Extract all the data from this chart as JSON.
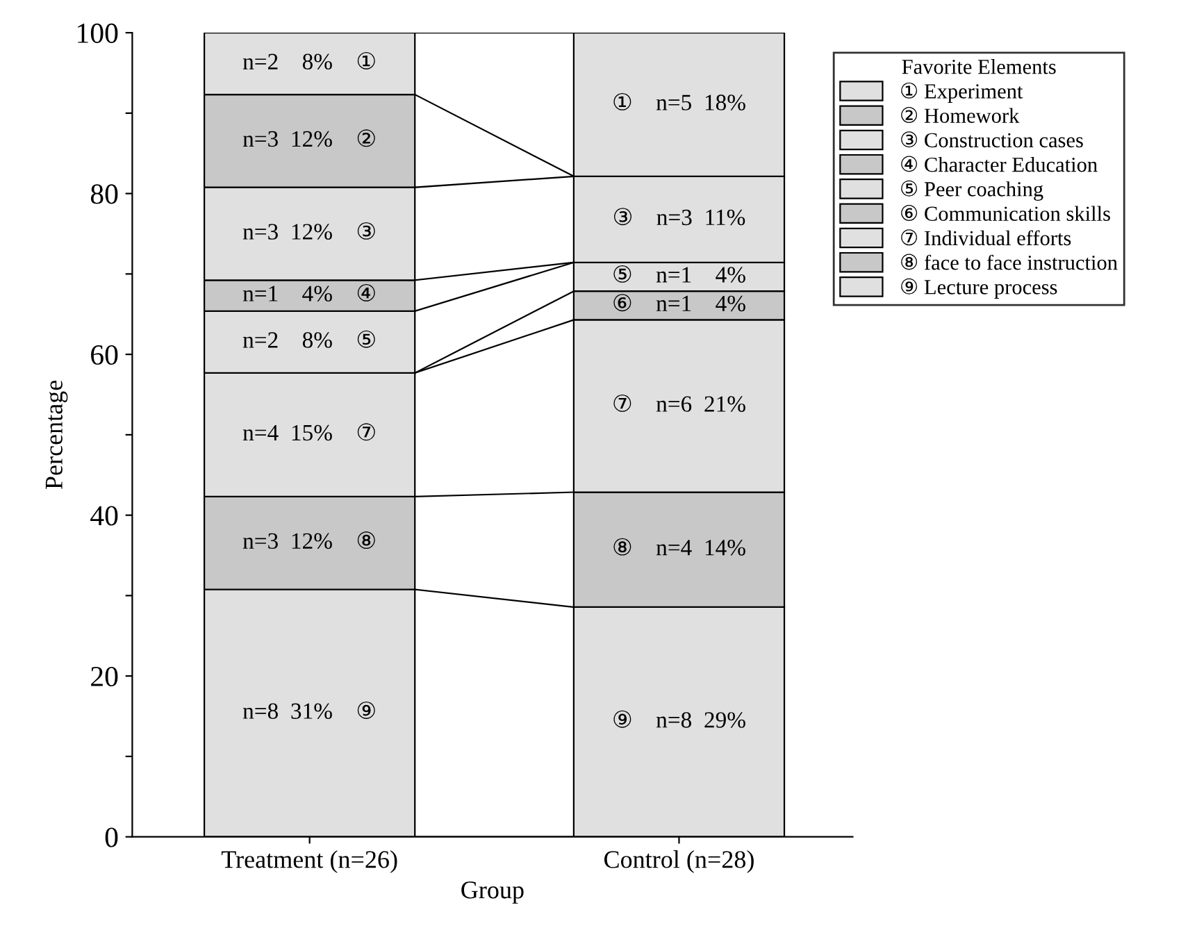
{
  "chart_data": {
    "type": "bar",
    "stacked": true,
    "xlabel": "Group",
    "ylabel": "Percentage",
    "legend_title": "Favorite Elements",
    "legend": "top right",
    "categories": [
      "Treatment (n=26)",
      "Control (n=28)"
    ],
    "ylim": [
      0,
      100
    ],
    "yticks": [
      0,
      {
        "value": 10,
        "label": null
      },
      20,
      {
        "value": 30,
        "label": null
      },
      40,
      {
        "value": 50,
        "label": null
      },
      60,
      {
        "value": 70,
        "label": null
      },
      80,
      {
        "value": 90,
        "label": null
      },
      100
    ],
    "series": [
      {
        "name": "⑨ Lecture process",
        "color": "#e0e0e0",
        "values": [
          30.77,
          28.57
        ],
        "value_labels": [
          "n=8  31%    ⑨",
          "⑨    n=8  29%"
        ]
      },
      {
        "name": "⑧ face to face instruction",
        "color": "#c8c8c8",
        "values": [
          11.54,
          14.29
        ],
        "value_labels": [
          "n=3  12%    ⑧",
          "⑧    n=4  14%"
        ]
      },
      {
        "name": "⑦ Individual efforts",
        "color": "#e0e0e0",
        "values": [
          15.38,
          21.43
        ],
        "value_labels": [
          "n=4  15%    ⑦",
          "⑦    n=6  21%"
        ]
      },
      {
        "name": "⑥ Communication skills",
        "color": "#c8c8c8",
        "values": [
          null,
          3.57
        ],
        "value_labels": [
          null,
          "⑥    n=1    4%"
        ]
      },
      {
        "name": "⑤ Peer coaching",
        "color": "#e0e0e0",
        "values": [
          7.69,
          3.57
        ],
        "value_labels": [
          "n=2    8%    ⑤",
          "⑤    n=1    4%"
        ]
      },
      {
        "name": "④ Character Education",
        "color": "#c8c8c8",
        "values": [
          3.85,
          null
        ],
        "value_labels": [
          "n=1    4%    ④",
          null
        ]
      },
      {
        "name": "③ Construction cases",
        "color": "#e0e0e0",
        "values": [
          11.54,
          10.71
        ],
        "value_labels": [
          "n=3  12%    ③",
          "③    n=3  11%"
        ]
      },
      {
        "name": "② Homework",
        "color": "#c8c8c8",
        "values": [
          11.54,
          null
        ],
        "value_labels": [
          "n=3  12%    ②",
          null
        ]
      },
      {
        "name": "① Experiment",
        "color": "#e0e0e0",
        "values": [
          7.69,
          17.86
        ],
        "value_labels": [
          "n=2    8%    ①",
          "①    n=5  18%"
        ]
      }
    ]
  }
}
